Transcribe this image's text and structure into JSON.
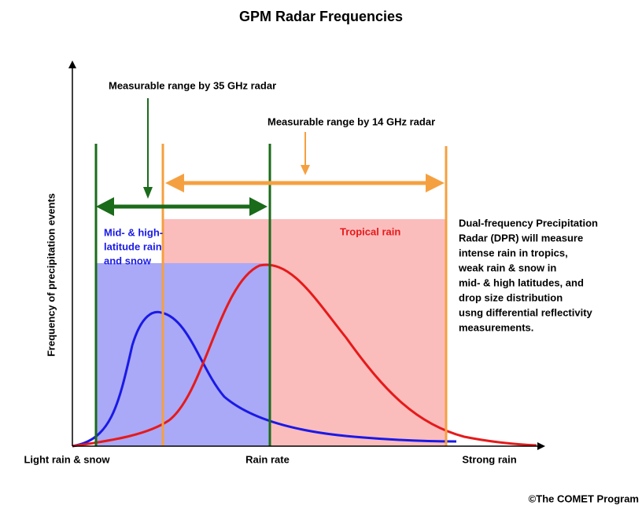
{
  "title": "GPM Radar Frequencies",
  "y_axis_label": "Frequency of precipitation events",
  "x_axis_labels": [
    "Light rain & snow",
    "Rain rate",
    "Strong rain"
  ],
  "annotations": {
    "radar_35": "Measurable range by 35 GHz radar",
    "radar_14": "Measurable range by 14 GHz radar",
    "mid_high": [
      "Mid- & high-",
      "latitude rain",
      "and snow"
    ],
    "tropical": "Tropical rain",
    "dpr": [
      "Dual-frequency Precipitation",
      "Radar (DPR) will measure",
      "intense rain in tropics,",
      "weak rain & snow in",
      "mid- & high latitudes, and",
      "drop size distribution",
      "usng differential reflectivity",
      "measurements."
    ]
  },
  "credit": "©The COMET Program"
}
